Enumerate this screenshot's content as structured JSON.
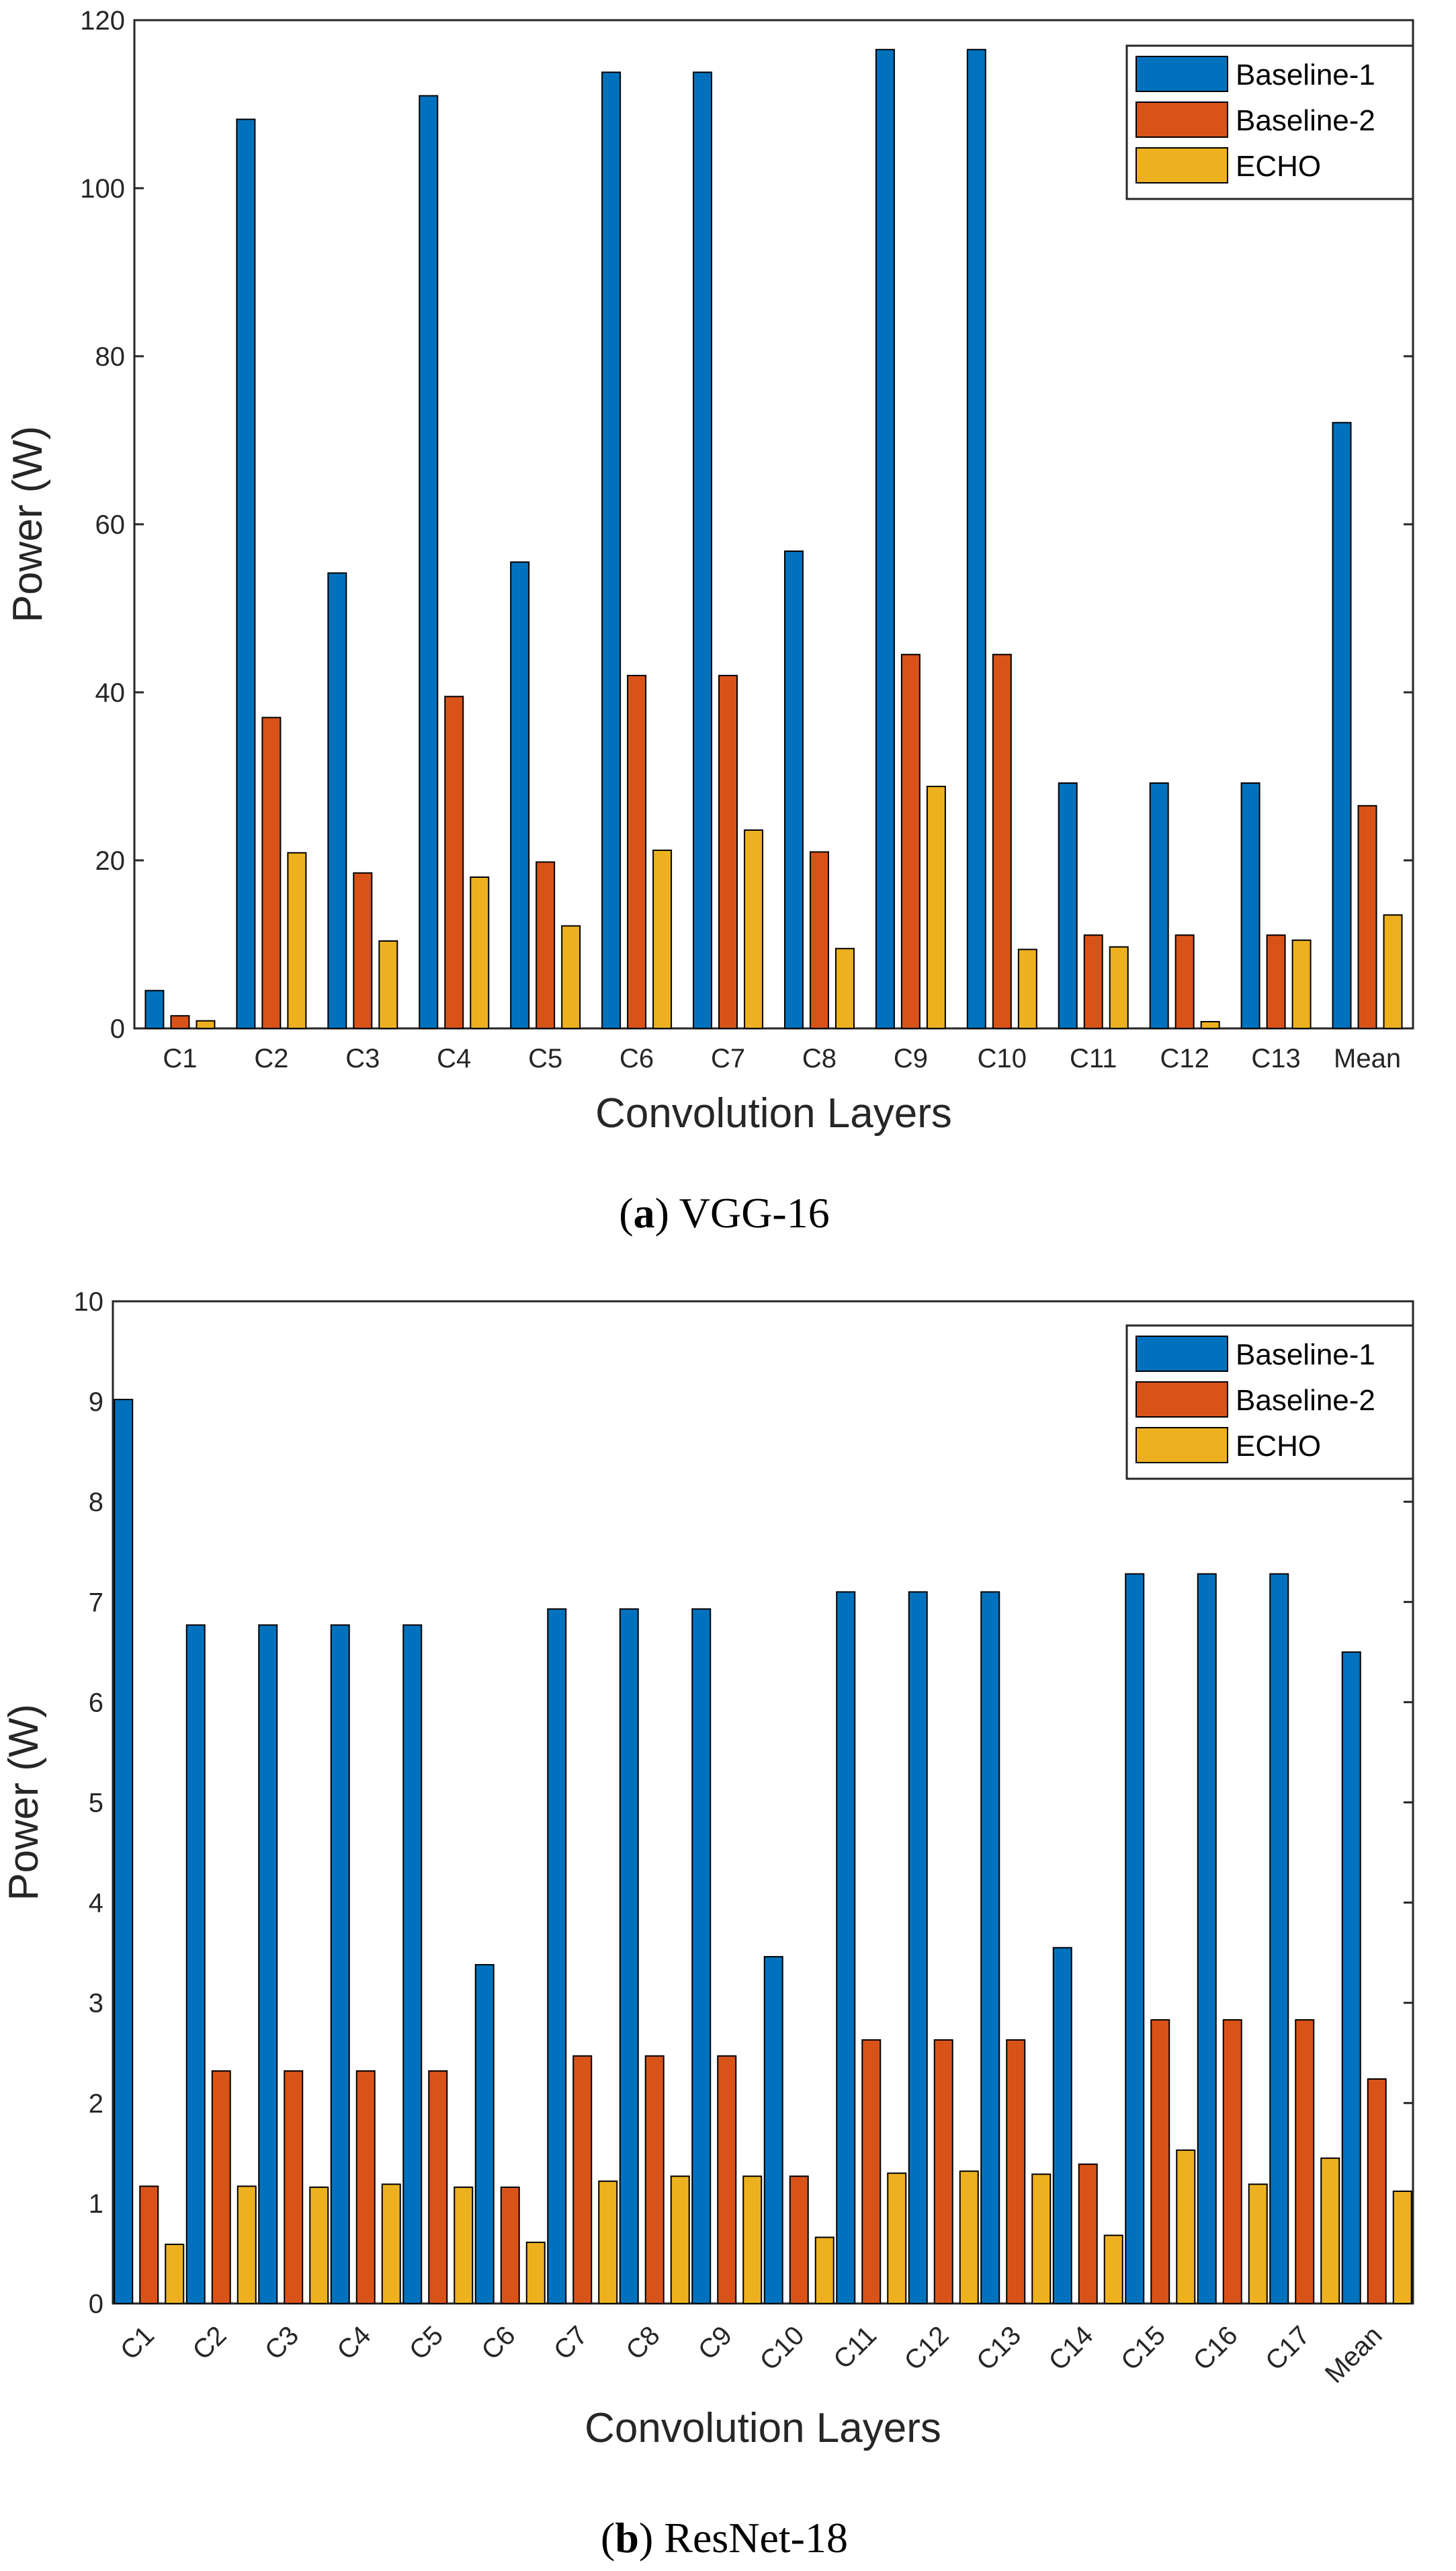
{
  "colors": {
    "baseline1": "#0072BD",
    "baseline2": "#D95319",
    "echo": "#EDB120",
    "axis": "#262626",
    "background": "#ffffff"
  },
  "chart_data": [
    {
      "type": "bar",
      "caption_letter": "a",
      "caption_open": "(",
      "caption_close": ")",
      "caption_text": " VGG-16",
      "title": "",
      "xlabel": "Convolution Layers",
      "ylabel": "Power (W)",
      "ylim": [
        0,
        120
      ],
      "yticks": [
        0,
        20,
        40,
        60,
        80,
        100,
        120
      ],
      "grid": false,
      "legend_position": "top-right",
      "rotated_tick_labels": false,
      "categories": [
        "C1",
        "C2",
        "C3",
        "C4",
        "C5",
        "C6",
        "C7",
        "C8",
        "C9",
        "C10",
        "C11",
        "C12",
        "C13",
        "Mean"
      ],
      "series": [
        {
          "name": "Baseline-1",
          "values": [
            4.5,
            108.2,
            54.2,
            111.0,
            55.5,
            113.8,
            113.8,
            56.8,
            116.5,
            116.5,
            29.2,
            29.2,
            29.2,
            72.1
          ]
        },
        {
          "name": "Baseline-2",
          "values": [
            1.5,
            37.0,
            18.5,
            39.5,
            19.8,
            42.0,
            42.0,
            21.0,
            44.5,
            44.5,
            11.1,
            11.1,
            11.1,
            26.5
          ]
        },
        {
          "name": "ECHO",
          "values": [
            0.9,
            20.9,
            10.4,
            18.0,
            12.2,
            21.2,
            23.6,
            9.5,
            28.8,
            9.4,
            9.7,
            0.8,
            10.5,
            13.5
          ]
        }
      ]
    },
    {
      "type": "bar",
      "caption_letter": "b",
      "caption_open": "(",
      "caption_close": ")",
      "caption_text": " ResNet-18",
      "title": "",
      "xlabel": "Convolution Layers",
      "ylabel": "Power (W)",
      "ylim": [
        0,
        10
      ],
      "yticks": [
        0,
        1,
        2,
        3,
        4,
        5,
        6,
        7,
        8,
        9,
        10
      ],
      "grid": false,
      "legend_position": "top-right",
      "rotated_tick_labels": true,
      "categories": [
        "C1",
        "C2",
        "C3",
        "C4",
        "C5",
        "C6",
        "C7",
        "C8",
        "C9",
        "C10",
        "C11",
        "C12",
        "C13",
        "C14",
        "C15",
        "C16",
        "C17",
        "Mean"
      ],
      "series": [
        {
          "name": "Baseline-1",
          "values": [
            9.02,
            6.77,
            6.77,
            6.77,
            6.77,
            3.38,
            6.93,
            6.93,
            6.93,
            3.46,
            7.1,
            7.1,
            7.1,
            3.55,
            7.28,
            7.28,
            7.28,
            6.5
          ]
        },
        {
          "name": "Baseline-2",
          "values": [
            1.17,
            2.32,
            2.32,
            2.32,
            2.32,
            1.16,
            2.47,
            2.47,
            2.47,
            1.27,
            2.63,
            2.63,
            2.63,
            1.39,
            2.83,
            2.83,
            2.83,
            2.24
          ]
        },
        {
          "name": "ECHO",
          "values": [
            0.59,
            1.17,
            1.16,
            1.19,
            1.16,
            0.61,
            1.22,
            1.27,
            1.27,
            0.66,
            1.3,
            1.32,
            1.29,
            0.68,
            1.53,
            1.19,
            1.45,
            1.12
          ]
        }
      ]
    }
  ]
}
